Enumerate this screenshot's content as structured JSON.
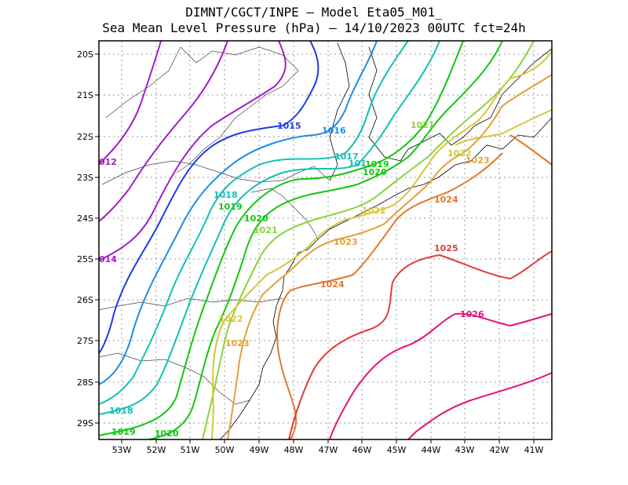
{
  "title": {
    "line1": "DIMNT/CGCT/INPE –  Model Eta05_M01_",
    "line2": "Sea Mean Level Pressure (hPa) – 14/10/2023 00UTC fct=24h"
  },
  "axes": {
    "lon_labels": [
      "53W",
      "52W",
      "51W",
      "50W",
      "49W",
      "48W",
      "47W",
      "46W",
      "45W",
      "44W",
      "43W",
      "42W",
      "41W"
    ],
    "lat_labels": [
      "20S",
      "21S",
      "22S",
      "23S",
      "24S",
      "25S",
      "26S",
      "27S",
      "28S",
      "29S"
    ]
  },
  "contour_labels": [
    {
      "text": "012",
      "color": "#a020c8"
    },
    {
      "text": "014",
      "color": "#a020c8"
    },
    {
      "text": "1015",
      "color": "#1e3ce6"
    },
    {
      "text": "1016",
      "color": "#1e8ce6"
    },
    {
      "text": "1017",
      "color": "#12c0b4"
    },
    {
      "text": "101",
      "color": "#12c0b4"
    },
    {
      "text": "1019",
      "color": "#10c810"
    },
    {
      "text": "1020",
      "color": "#10c810"
    },
    {
      "text": "1018",
      "color": "#12c0b4"
    },
    {
      "text": "1019",
      "color": "#10c810"
    },
    {
      "text": "1020",
      "color": "#10c810"
    },
    {
      "text": "1021",
      "color": "#8cd23c"
    },
    {
      "text": "1021",
      "color": "#8cd23c"
    },
    {
      "text": "1022",
      "color": "#d2c83c"
    },
    {
      "text": "1022",
      "color": "#d2c83c"
    },
    {
      "text": "1023",
      "color": "#e1a03c"
    },
    {
      "text": "1023",
      "color": "#e1a03c"
    },
    {
      "text": "1024",
      "color": "#e17828"
    },
    {
      "text": "1024",
      "color": "#e17828"
    },
    {
      "text": "1022",
      "color": "#d2c83c"
    },
    {
      "text": "1023",
      "color": "#e1a03c"
    },
    {
      "text": "1025",
      "color": "#e13c3c"
    },
    {
      "text": "1026",
      "color": "#e1147c"
    },
    {
      "text": "1018",
      "color": "#12c0b4"
    },
    {
      "text": "1019",
      "color": "#10c810"
    },
    {
      "text": "1020",
      "color": "#10c810"
    }
  ],
  "colors": {
    "iso1012": "#a020c8",
    "iso1015": "#1e3ce6",
    "iso1016": "#1e8ce6",
    "iso1017": "#12c0b4",
    "iso1018": "#12c0b4",
    "iso1019": "#10c810",
    "iso1020": "#10c810",
    "iso1021": "#8cd23c",
    "iso1022": "#d2c83c",
    "iso1023": "#e1a03c",
    "iso1024": "#e17828",
    "iso1025": "#e13c3c",
    "iso1026": "#e1147c"
  }
}
